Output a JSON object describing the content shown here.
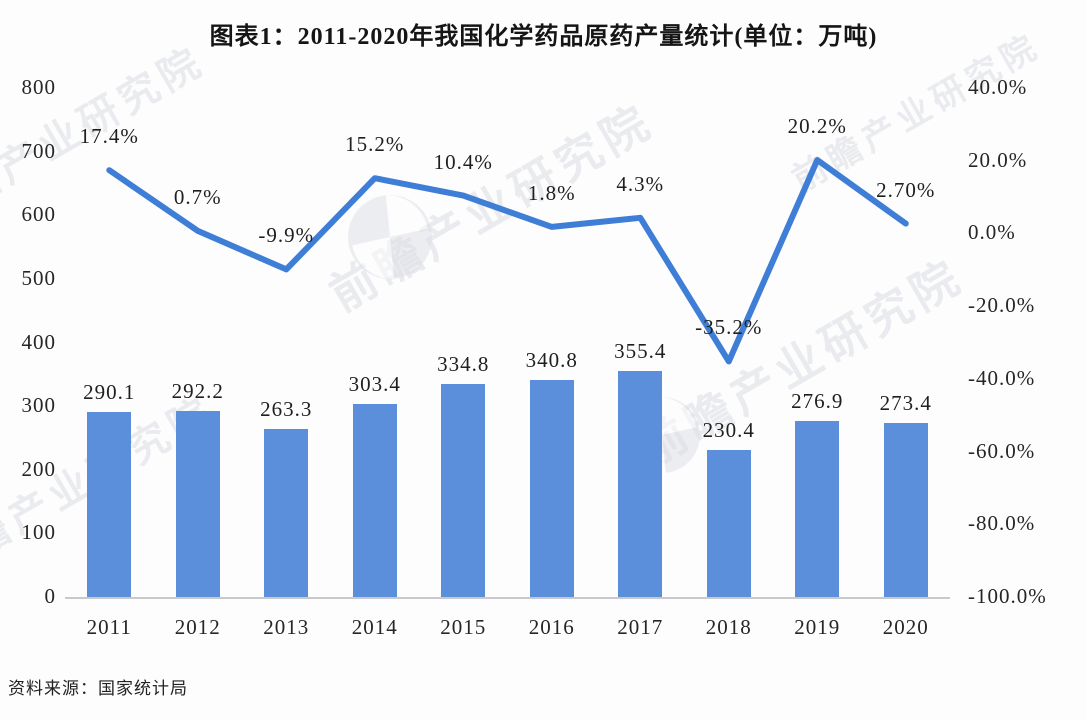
{
  "source_note": "资料来源：国家统计局",
  "watermark_text": "前瞻产业研究院",
  "colors": {
    "bar": "#5B8FDB",
    "line": "#3E7ED6",
    "label_text": "#1F1F1F",
    "axis_text": "#262626",
    "axis_line": "#C9C9C9",
    "watermark": "#DADEE4",
    "background": "#FDFDFD"
  },
  "chart_data": {
    "type": "bar",
    "title": "图表1：2011-2020年我国化学药品原药产量统计(单位：万吨)",
    "categories": [
      "2011",
      "2012",
      "2013",
      "2014",
      "2015",
      "2016",
      "2017",
      "2018",
      "2019",
      "2020"
    ],
    "series": [
      {
        "type": "bar",
        "axis": "left",
        "values": [
          290.1,
          292.2,
          263.3,
          303.4,
          334.8,
          340.8,
          355.4,
          230.4,
          276.9,
          273.4
        ],
        "labels": [
          "290.1",
          "292.2",
          "263.3",
          "303.4",
          "334.8",
          "340.8",
          "355.4",
          "230.4",
          "276.9",
          "273.4"
        ]
      },
      {
        "type": "line",
        "axis": "right",
        "values": [
          17.4,
          0.7,
          -9.9,
          15.2,
          10.4,
          1.8,
          4.3,
          -35.2,
          20.2,
          2.7
        ],
        "labels": [
          "17.4%",
          "0.7%",
          "-9.9%",
          "15.2%",
          "10.4%",
          "1.8%",
          "4.3%",
          "-35.2%",
          "20.2%",
          "2.70%"
        ]
      }
    ],
    "left_axis": {
      "range": [
        0,
        800
      ],
      "ticks": [
        "0",
        "100",
        "200",
        "300",
        "400",
        "500",
        "600",
        "700",
        "800"
      ]
    },
    "right_axis": {
      "range": [
        -100,
        40
      ],
      "ticks": [
        "40.0%",
        "20.0%",
        "0.0%",
        "-20.0%",
        "-40.0%",
        "-60.0%",
        "-80.0%",
        "-100.0%"
      ]
    },
    "grid": false,
    "legend": "none"
  }
}
